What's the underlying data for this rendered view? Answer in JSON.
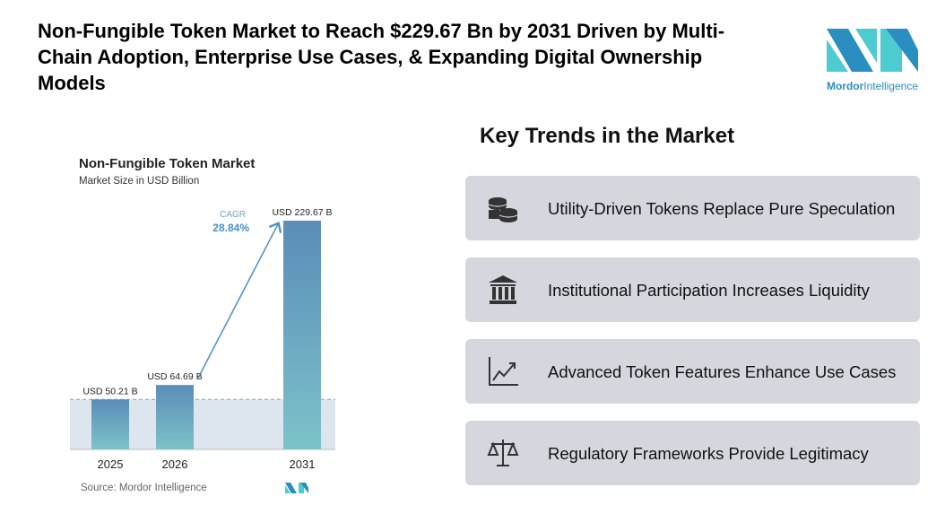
{
  "title": "Non-Fungible Token Market to Reach $229.67 Bn by 2031 Driven by Multi-Chain Adoption, Enterprise Use Cases, & Expanding Digital Ownership Models",
  "logo": {
    "text_bold": "Mordor",
    "text_rest": "Intelligence"
  },
  "chart_data": {
    "type": "bar",
    "title": "Non-Fungible Token Market",
    "subtitle": "Market Size in USD Billion",
    "categories": [
      "2025",
      "2026",
      "2031"
    ],
    "values": [
      50.21,
      64.69,
      229.67
    ],
    "data_labels": [
      "USD 50.21 B",
      "USD 64.69 B",
      "USD 229.67 B"
    ],
    "annotation": {
      "label": "CAGR",
      "value": "28.84%"
    },
    "source": "Source: Mordor Intelligence",
    "colors": {
      "bar_top": "#5b8db8",
      "bar_bottom": "#7cc3c9",
      "band": "#dde6ee",
      "accent": "#4a8fc4"
    }
  },
  "trends": {
    "title": "Key Trends in the Market",
    "items": [
      {
        "label": "Utility-Driven Tokens Replace Pure Speculation",
        "icon": "coins-icon"
      },
      {
        "label": "Institutional Participation Increases Liquidity",
        "icon": "bank-icon"
      },
      {
        "label": "Advanced Token Features Enhance Use Cases",
        "icon": "line-chart-icon"
      },
      {
        "label": "Regulatory Frameworks Provide Legitimacy",
        "icon": "scales-icon"
      }
    ]
  }
}
